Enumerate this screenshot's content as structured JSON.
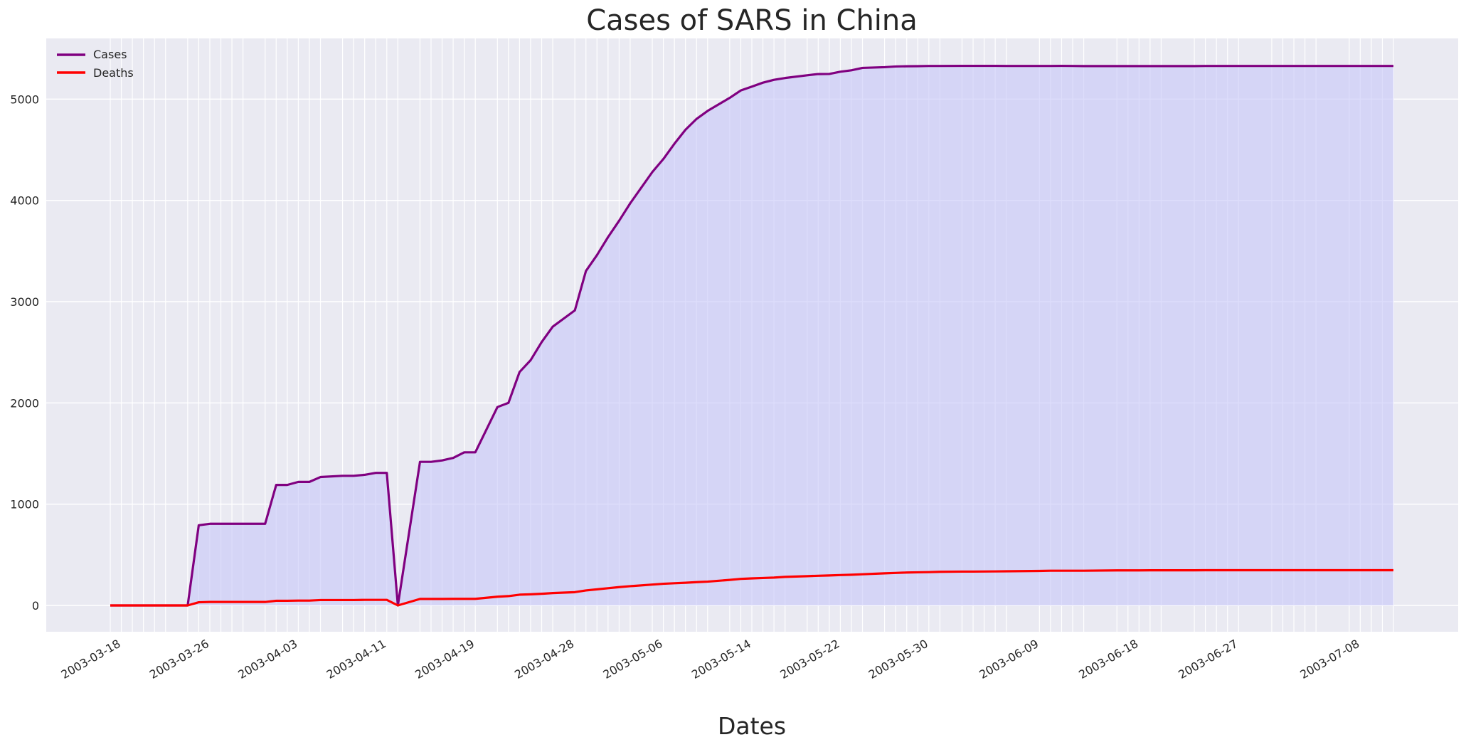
{
  "chart_data": {
    "type": "line",
    "title": "Cases of SARS in China",
    "xlabel": "Dates",
    "ylabel": "",
    "ylim": [
      -260,
      5600
    ],
    "yticks": [
      0,
      1000,
      2000,
      3000,
      4000,
      5000
    ],
    "grid": true,
    "legend_position": "top-left",
    "shaded_series": "Cases",
    "dates": [
      "2003-03-17",
      "2003-03-18",
      "2003-03-19",
      "2003-03-20",
      "2003-03-21",
      "2003-03-22",
      "2003-03-24",
      "2003-03-25",
      "2003-03-26",
      "2003-03-27",
      "2003-03-28",
      "2003-03-29",
      "2003-03-31",
      "2003-04-01",
      "2003-04-02",
      "2003-04-03",
      "2003-04-04",
      "2003-04-05",
      "2003-04-07",
      "2003-04-08",
      "2003-04-09",
      "2003-04-10",
      "2003-04-11",
      "2003-04-12",
      "2003-04-14",
      "2003-04-15",
      "2003-04-16",
      "2003-04-17",
      "2003-04-18",
      "2003-04-19",
      "2003-04-21",
      "2003-04-22",
      "2003-04-23",
      "2003-04-24",
      "2003-04-25",
      "2003-04-26",
      "2003-04-28",
      "2003-04-29",
      "2003-04-30",
      "2003-05-01",
      "2003-05-02",
      "2003-05-03",
      "2003-05-05",
      "2003-05-06",
      "2003-05-07",
      "2003-05-08",
      "2003-05-09",
      "2003-05-10",
      "2003-05-12",
      "2003-05-13",
      "2003-05-14",
      "2003-05-15",
      "2003-05-16",
      "2003-05-17",
      "2003-05-19",
      "2003-05-20",
      "2003-05-21",
      "2003-05-22",
      "2003-05-23",
      "2003-05-24",
      "2003-05-26",
      "2003-05-27",
      "2003-05-28",
      "2003-05-29",
      "2003-05-30",
      "2003-05-31",
      "2003-06-02",
      "2003-06-03",
      "2003-06-04",
      "2003-06-05",
      "2003-06-06",
      "2003-06-09",
      "2003-06-10",
      "2003-06-11",
      "2003-06-12",
      "2003-06-13",
      "2003-06-16",
      "2003-06-17",
      "2003-06-18",
      "2003-06-19",
      "2003-06-20",
      "2003-06-23",
      "2003-06-24",
      "2003-06-25",
      "2003-06-26",
      "2003-06-27",
      "2003-06-30",
      "2003-07-01",
      "2003-07-02",
      "2003-07-03",
      "2003-07-04",
      "2003-07-07",
      "2003-07-08",
      "2003-07-09",
      "2003-07-10",
      "2003-07-11"
    ],
    "xtick_labels": [
      "2003-03-18",
      "2003-03-26",
      "2003-04-03",
      "2003-04-11",
      "2003-04-19",
      "2003-04-28",
      "2003-05-06",
      "2003-05-14",
      "2003-05-22",
      "2003-05-30",
      "2003-06-09",
      "2003-06-18",
      "2003-06-27",
      "2003-07-08"
    ],
    "series": [
      {
        "name": "Cases",
        "color": "#800080",
        "values": [
          0,
          0,
          0,
          0,
          0,
          0,
          0,
          792,
          806,
          806,
          806,
          806,
          806,
          1190,
          1190,
          1220,
          1220,
          1268,
          1280,
          1280,
          1290,
          1309,
          1309,
          0,
          1418,
          1418,
          1432,
          1457,
          1512,
          1512,
          1959,
          2001,
          2305,
          2422,
          2601,
          2753,
          2914,
          3303,
          3460,
          3638,
          3799,
          3971,
          4280,
          4409,
          4560,
          4698,
          4805,
          4884,
          5013,
          5086,
          5124,
          5163,
          5191,
          5209,
          5236,
          5248,
          5249,
          5271,
          5285,
          5309,
          5316,
          5323,
          5325,
          5326,
          5328,
          5328,
          5329,
          5329,
          5329,
          5329,
          5328,
          5328,
          5328,
          5329,
          5328,
          5327,
          5327,
          5327,
          5327,
          5327,
          5327,
          5327,
          5328,
          5328,
          5328,
          5328,
          5328,
          5328,
          5328,
          5328,
          5328,
          5328,
          5328,
          5328,
          5328,
          5328
        ]
      },
      {
        "name": "Deaths",
        "color": "#ff0000",
        "values": [
          0,
          0,
          0,
          0,
          0,
          0,
          0,
          31,
          34,
          34,
          34,
          34,
          34,
          46,
          46,
          48,
          48,
          53,
          53,
          53,
          55,
          55,
          55,
          0,
          64,
          64,
          64,
          65,
          65,
          65,
          86,
          92,
          106,
          110,
          115,
          122,
          131,
          148,
          159,
          170,
          181,
          190,
          206,
          214,
          219,
          224,
          230,
          235,
          252,
          262,
          267,
          271,
          275,
          282,
          289,
          293,
          296,
          300,
          303,
          308,
          317,
          321,
          325,
          327,
          329,
          332,
          334,
          334,
          335,
          336,
          337,
          341,
          343,
          343,
          343,
          343,
          346,
          346,
          346,
          347,
          347,
          347,
          348,
          348,
          348,
          348,
          348,
          348,
          348,
          348,
          348,
          348,
          348,
          348,
          348,
          348
        ]
      }
    ]
  }
}
